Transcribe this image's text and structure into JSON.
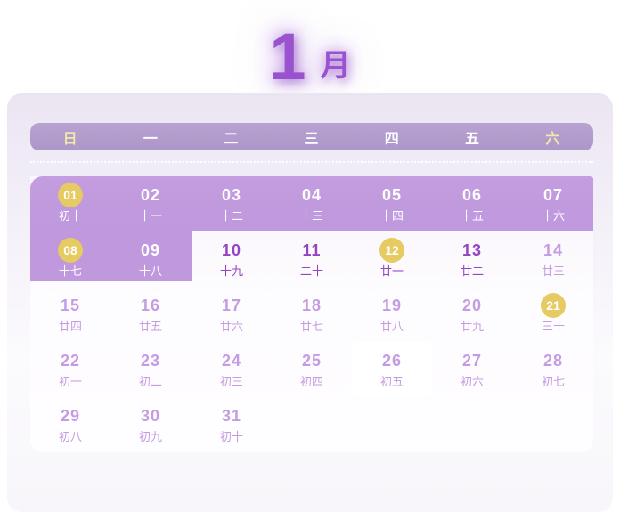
{
  "page": {
    "title_month": "1",
    "title_unit": "月"
  },
  "weekday_header": {
    "labels": [
      "日",
      "一",
      "二",
      "三",
      "四",
      "五",
      "六"
    ]
  },
  "days": [
    {
      "num": "01",
      "lunar": "初十",
      "badge": true
    },
    {
      "num": "02",
      "lunar": "十一"
    },
    {
      "num": "03",
      "lunar": "十二"
    },
    {
      "num": "04",
      "lunar": "十三"
    },
    {
      "num": "05",
      "lunar": "十四"
    },
    {
      "num": "06",
      "lunar": "十五"
    },
    {
      "num": "07",
      "lunar": "十六"
    },
    {
      "num": "08",
      "lunar": "十七",
      "badge": true
    },
    {
      "num": "09",
      "lunar": "十八"
    },
    {
      "num": "10",
      "lunar": "十九"
    },
    {
      "num": "11",
      "lunar": "二十"
    },
    {
      "num": "12",
      "lunar": "廿一",
      "badge": true
    },
    {
      "num": "13",
      "lunar": "廿二"
    },
    {
      "num": "14",
      "lunar": "廿三"
    },
    {
      "num": "15",
      "lunar": "廿四"
    },
    {
      "num": "16",
      "lunar": "廿五"
    },
    {
      "num": "17",
      "lunar": "廿六"
    },
    {
      "num": "18",
      "lunar": "廿七"
    },
    {
      "num": "19",
      "lunar": "廿八"
    },
    {
      "num": "20",
      "lunar": "廿九"
    },
    {
      "num": "21",
      "lunar": "三十",
      "badge": true
    },
    {
      "num": "22",
      "lunar": "初一"
    },
    {
      "num": "23",
      "lunar": "初二"
    },
    {
      "num": "24",
      "lunar": "初三"
    },
    {
      "num": "25",
      "lunar": "初四"
    },
    {
      "num": "26",
      "lunar": "初五",
      "today": true
    },
    {
      "num": "27",
      "lunar": "初六"
    },
    {
      "num": "28",
      "lunar": "初七"
    },
    {
      "num": "29",
      "lunar": "初八"
    },
    {
      "num": "30",
      "lunar": "初九"
    },
    {
      "num": "31",
      "lunar": "初十"
    }
  ],
  "colors": {
    "title_purple": "#9a53ce",
    "weekbar_purple": "#b29bcd",
    "weekend_label_yellow": "#f3e7ab",
    "highlight_block_purple": "#bf98dd",
    "badge_yellow": "#e6cb63",
    "day_dark_purple": "#9444c0",
    "day_light_purple": "#c59ce2",
    "card_lavender": "#ebe5f2"
  }
}
